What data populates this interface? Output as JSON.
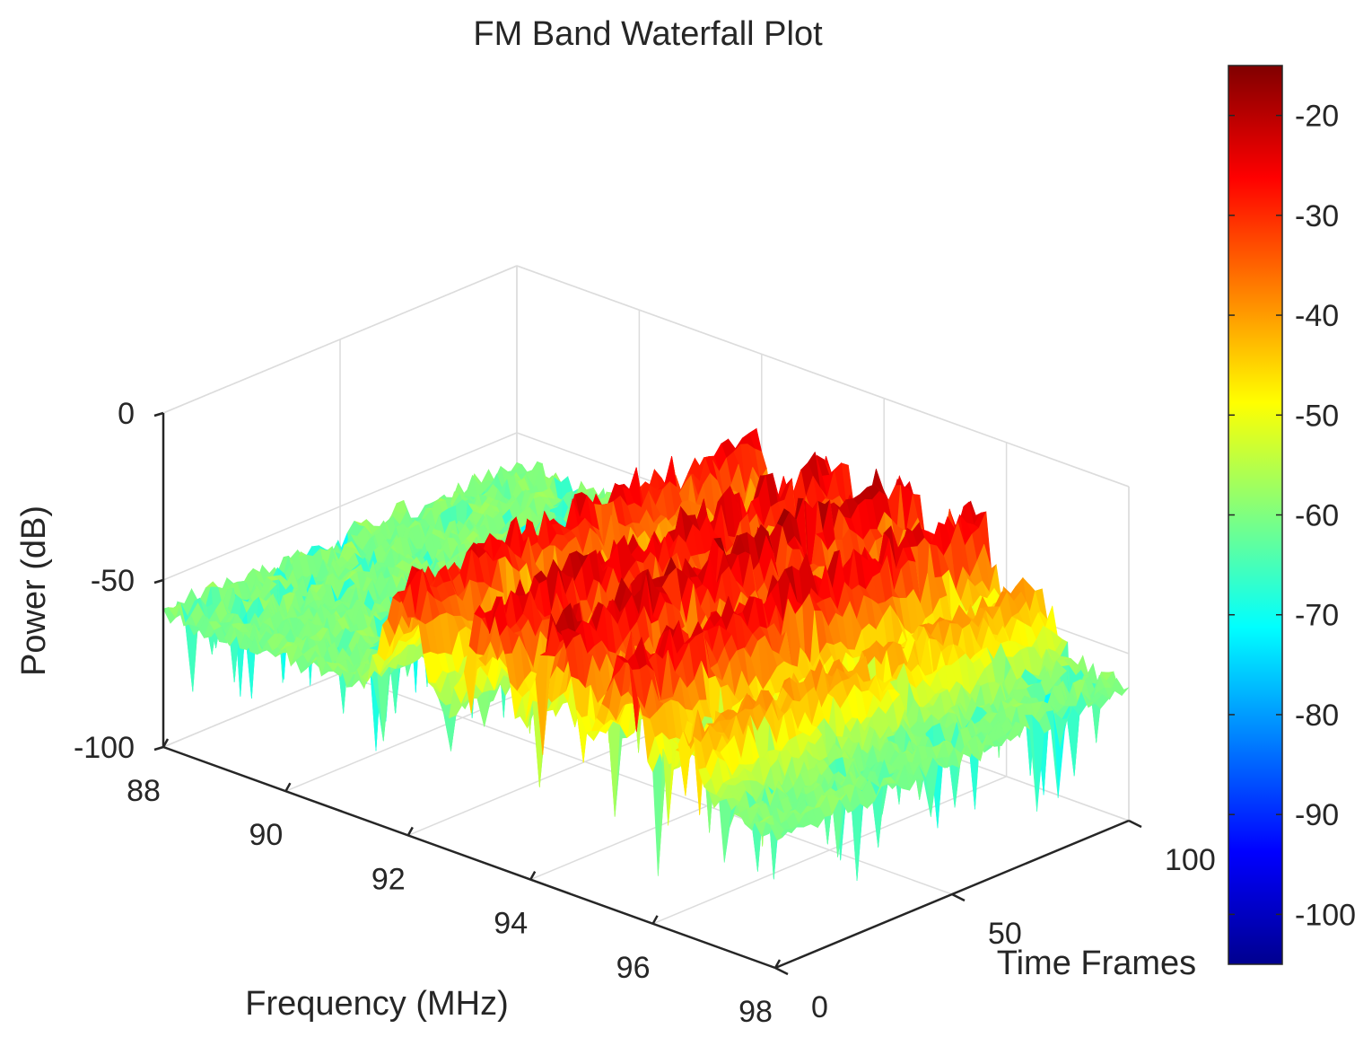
{
  "chart_data": {
    "type": "surface",
    "title": "FM Band Waterfall Plot",
    "xlabel": "Frequency (MHz)",
    "ylabel": "Time Frames",
    "zlabel": "Power (dB)",
    "x_ticks": [
      88,
      90,
      92,
      94,
      96,
      98
    ],
    "y_ticks": [
      0,
      50,
      100
    ],
    "z_ticks": [
      0,
      -50,
      -100
    ],
    "xlim": [
      88,
      98
    ],
    "ylim": [
      0,
      100
    ],
    "zlim": [
      -100,
      0
    ],
    "colorbar": {
      "ticks": [
        -20,
        -30,
        -40,
        -50,
        -60,
        -70,
        -80,
        -90,
        -100
      ],
      "clim": [
        -105,
        -15
      ],
      "colormap": "jet",
      "placement": "right"
    },
    "grid": true,
    "noise_floor_db": -60,
    "noise_floor_edge_db": -72,
    "stations": [
      {
        "frequency_mhz": 91.9,
        "peak_db": -22
      },
      {
        "frequency_mhz": 93.3,
        "peak_db": -18
      },
      {
        "frequency_mhz": 94.4,
        "peak_db": -16
      },
      {
        "frequency_mhz": 95.5,
        "peak_db": -19
      },
      {
        "frequency_mhz": 96.5,
        "peak_db": -38
      }
    ]
  },
  "colors": {
    "axis": "#262626",
    "grid": "#dcdcdc"
  }
}
